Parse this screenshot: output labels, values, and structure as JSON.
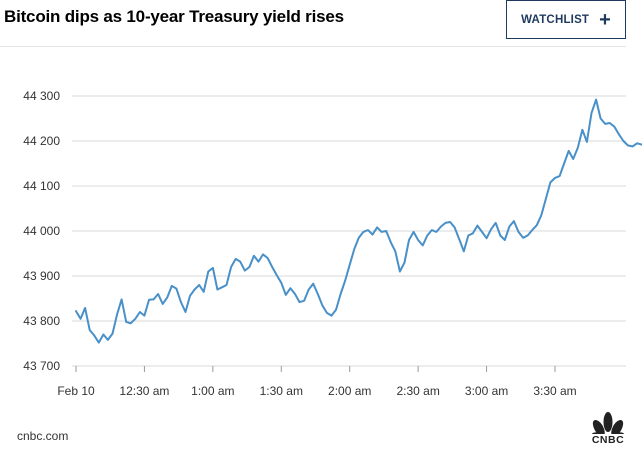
{
  "header": {
    "title": "Bitcoin dips as 10-year Treasury yield rises",
    "watchlist_label": "WATCHLIST",
    "watchlist_icon": "plus-icon"
  },
  "footer": {
    "source": "cnbc.com",
    "logo_text": "CNBC",
    "logo_icon": "peacock-icon"
  },
  "colors": {
    "line": "#4a90c8",
    "grid": "#d9d9d9",
    "axis_text": "#333333",
    "accent": "#1f3a5f"
  },
  "chart_data": {
    "type": "line",
    "title": "Bitcoin dips as 10-year Treasury yield rises",
    "xlabel": "",
    "ylabel": "",
    "ylim": [
      43700,
      44300
    ],
    "yticks": [
      43700,
      43800,
      43900,
      44000,
      44100,
      44200,
      44300
    ],
    "ytick_labels": [
      "43 700",
      "43 800",
      "43 900",
      "44 000",
      "44 100",
      "44 200",
      "44 300"
    ],
    "xlim": [
      0,
      248
    ],
    "xticks": [
      0,
      30,
      60,
      90,
      120,
      150,
      180,
      210
    ],
    "xtick_labels": [
      "Feb 10",
      "12:30 am",
      "1:00 am",
      "1:30 am",
      "2:00 am",
      "2:30 am",
      "3:00 am",
      "3:30 am"
    ],
    "x_unit": "minutes after 12:00 am Feb 10",
    "grid": true,
    "legend": "none",
    "series": [
      {
        "x": [
          0,
          2,
          4,
          6,
          8,
          10,
          12,
          14,
          16,
          18,
          20,
          22,
          24,
          26,
          28,
          30,
          32,
          34,
          36,
          38,
          40,
          42,
          44,
          46,
          48,
          50,
          52,
          54,
          56,
          58,
          60,
          62,
          64,
          66,
          68,
          70,
          72,
          74,
          76,
          78,
          80,
          82,
          84,
          86,
          88,
          90,
          92,
          94,
          96,
          98,
          100,
          102,
          104,
          106,
          108,
          110,
          112,
          114,
          116,
          118,
          120,
          122,
          124,
          126,
          128,
          130,
          132,
          134,
          136,
          138,
          140,
          142,
          144,
          146,
          148,
          150,
          152,
          154,
          156,
          158,
          160,
          162,
          164,
          166,
          168,
          170,
          172,
          174,
          176,
          178,
          180,
          182,
          184,
          186,
          188,
          190,
          192,
          194,
          196,
          198,
          200,
          202,
          204,
          206,
          208,
          210,
          212,
          214,
          216,
          218,
          220,
          222,
          224,
          226,
          228,
          230,
          232,
          234,
          236,
          238,
          240,
          242,
          244,
          246,
          248
        ],
        "y": [
          43822,
          43805,
          43829,
          43780,
          43768,
          43752,
          43770,
          43758,
          43772,
          43815,
          43848,
          43798,
          43795,
          43805,
          43820,
          43812,
          43847,
          43848,
          43860,
          43838,
          43852,
          43878,
          43872,
          43842,
          43820,
          43856,
          43870,
          43880,
          43865,
          43910,
          43918,
          43870,
          43875,
          43880,
          43920,
          43938,
          43932,
          43912,
          43920,
          43945,
          43932,
          43948,
          43940,
          43920,
          43902,
          43885,
          43858,
          43873,
          43860,
          43842,
          43845,
          43870,
          43883,
          43860,
          43835,
          43818,
          43812,
          43825,
          43860,
          43890,
          43925,
          43960,
          43985,
          43998,
          44002,
          43992,
          44008,
          43998,
          44000,
          43975,
          43955,
          43910,
          43930,
          43980,
          43998,
          43980,
          43968,
          43990,
          44002,
          43998,
          44010,
          44018,
          44020,
          44008,
          43982,
          43955,
          43990,
          43995,
          44012,
          43998,
          43984,
          44004,
          44018,
          43990,
          43980,
          44010,
          44022,
          43998,
          43985,
          43990,
          44002,
          44013,
          44035,
          44072,
          44108,
          44118,
          44122,
          44150,
          44178,
          44160,
          44185,
          44225,
          44198,
          44262,
          44292,
          44250,
          44238,
          44240,
          44232,
          44215,
          44200,
          44190,
          44188,
          44195,
          44192
        ]
      }
    ]
  }
}
